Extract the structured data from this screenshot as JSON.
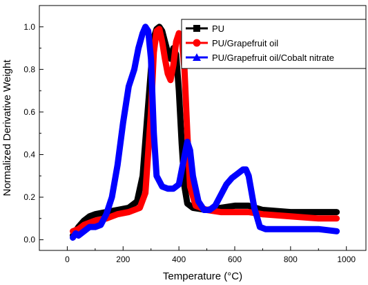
{
  "chart_data": {
    "type": "line",
    "title": "",
    "xlabel": "Temperature (°C)",
    "ylabel": "Normalized Derivative Weight",
    "xlim": [
      -100,
      1070
    ],
    "ylim": [
      -0.05,
      1.1
    ],
    "xticks": [
      0,
      200,
      400,
      600,
      800,
      1000
    ],
    "yticks": [
      0.0,
      0.2,
      0.4,
      0.6,
      0.8,
      1.0
    ],
    "xtick_labels": [
      "0",
      "200",
      "400",
      "600",
      "800",
      "1000"
    ],
    "ytick_labels": [
      "0.0",
      "0.2",
      "0.4",
      "0.6",
      "0.8",
      "1.0"
    ],
    "grid": false,
    "legend_position": "top-right",
    "series": [
      {
        "name": "PU",
        "color": "#000000",
        "marker": "square",
        "points": [
          [
            20,
            0.02
          ],
          [
            40,
            0.06
          ],
          [
            60,
            0.09
          ],
          [
            80,
            0.11
          ],
          [
            100,
            0.12
          ],
          [
            140,
            0.13
          ],
          [
            180,
            0.14
          ],
          [
            220,
            0.15
          ],
          [
            250,
            0.18
          ],
          [
            270,
            0.3
          ],
          [
            285,
            0.55
          ],
          [
            300,
            0.8
          ],
          [
            310,
            0.95
          ],
          [
            320,
            0.99
          ],
          [
            330,
            1.0
          ],
          [
            340,
            0.98
          ],
          [
            350,
            0.93
          ],
          [
            360,
            0.88
          ],
          [
            370,
            0.85
          ],
          [
            380,
            0.9
          ],
          [
            390,
            0.87
          ],
          [
            400,
            0.7
          ],
          [
            410,
            0.45
          ],
          [
            420,
            0.25
          ],
          [
            430,
            0.17
          ],
          [
            450,
            0.15
          ],
          [
            500,
            0.14
          ],
          [
            550,
            0.15
          ],
          [
            600,
            0.16
          ],
          [
            650,
            0.16
          ],
          [
            700,
            0.14
          ],
          [
            800,
            0.13
          ],
          [
            900,
            0.13
          ],
          [
            965,
            0.13
          ]
        ]
      },
      {
        "name": "PU/Grapefruit oil",
        "color": "#ff0000",
        "marker": "circle",
        "points": [
          [
            20,
            0.04
          ],
          [
            40,
            0.05
          ],
          [
            60,
            0.07
          ],
          [
            80,
            0.08
          ],
          [
            100,
            0.09
          ],
          [
            140,
            0.1
          ],
          [
            180,
            0.12
          ],
          [
            220,
            0.13
          ],
          [
            260,
            0.15
          ],
          [
            280,
            0.22
          ],
          [
            300,
            0.6
          ],
          [
            310,
            0.88
          ],
          [
            320,
            0.98
          ],
          [
            330,
            0.99
          ],
          [
            340,
            0.93
          ],
          [
            350,
            0.85
          ],
          [
            360,
            0.78
          ],
          [
            370,
            0.75
          ],
          [
            380,
            0.82
          ],
          [
            390,
            0.93
          ],
          [
            400,
            0.97
          ],
          [
            410,
            0.95
          ],
          [
            420,
            0.8
          ],
          [
            430,
            0.5
          ],
          [
            440,
            0.25
          ],
          [
            460,
            0.16
          ],
          [
            500,
            0.14
          ],
          [
            550,
            0.13
          ],
          [
            600,
            0.13
          ],
          [
            650,
            0.13
          ],
          [
            700,
            0.12
          ],
          [
            800,
            0.11
          ],
          [
            900,
            0.1
          ],
          [
            965,
            0.1
          ]
        ]
      },
      {
        "name": "PU/Grapefruit oil/Cobalt nitrate",
        "color": "#0000ff",
        "marker": "triangle",
        "points": [
          [
            20,
            0.01
          ],
          [
            30,
            0.03
          ],
          [
            40,
            0.02
          ],
          [
            60,
            0.04
          ],
          [
            80,
            0.06
          ],
          [
            100,
            0.06
          ],
          [
            120,
            0.07
          ],
          [
            140,
            0.12
          ],
          [
            160,
            0.2
          ],
          [
            180,
            0.35
          ],
          [
            200,
            0.55
          ],
          [
            220,
            0.72
          ],
          [
            240,
            0.8
          ],
          [
            255,
            0.9
          ],
          [
            270,
            0.97
          ],
          [
            280,
            1.0
          ],
          [
            290,
            0.98
          ],
          [
            300,
            0.85
          ],
          [
            310,
            0.5
          ],
          [
            320,
            0.3
          ],
          [
            340,
            0.25
          ],
          [
            360,
            0.24
          ],
          [
            380,
            0.24
          ],
          [
            400,
            0.26
          ],
          [
            415,
            0.36
          ],
          [
            430,
            0.46
          ],
          [
            440,
            0.42
          ],
          [
            450,
            0.3
          ],
          [
            470,
            0.18
          ],
          [
            490,
            0.14
          ],
          [
            510,
            0.14
          ],
          [
            530,
            0.16
          ],
          [
            550,
            0.21
          ],
          [
            570,
            0.26
          ],
          [
            590,
            0.29
          ],
          [
            610,
            0.31
          ],
          [
            630,
            0.33
          ],
          [
            640,
            0.33
          ],
          [
            650,
            0.3
          ],
          [
            670,
            0.15
          ],
          [
            690,
            0.06
          ],
          [
            710,
            0.05
          ],
          [
            800,
            0.05
          ],
          [
            900,
            0.05
          ],
          [
            965,
            0.04
          ]
        ]
      }
    ]
  }
}
